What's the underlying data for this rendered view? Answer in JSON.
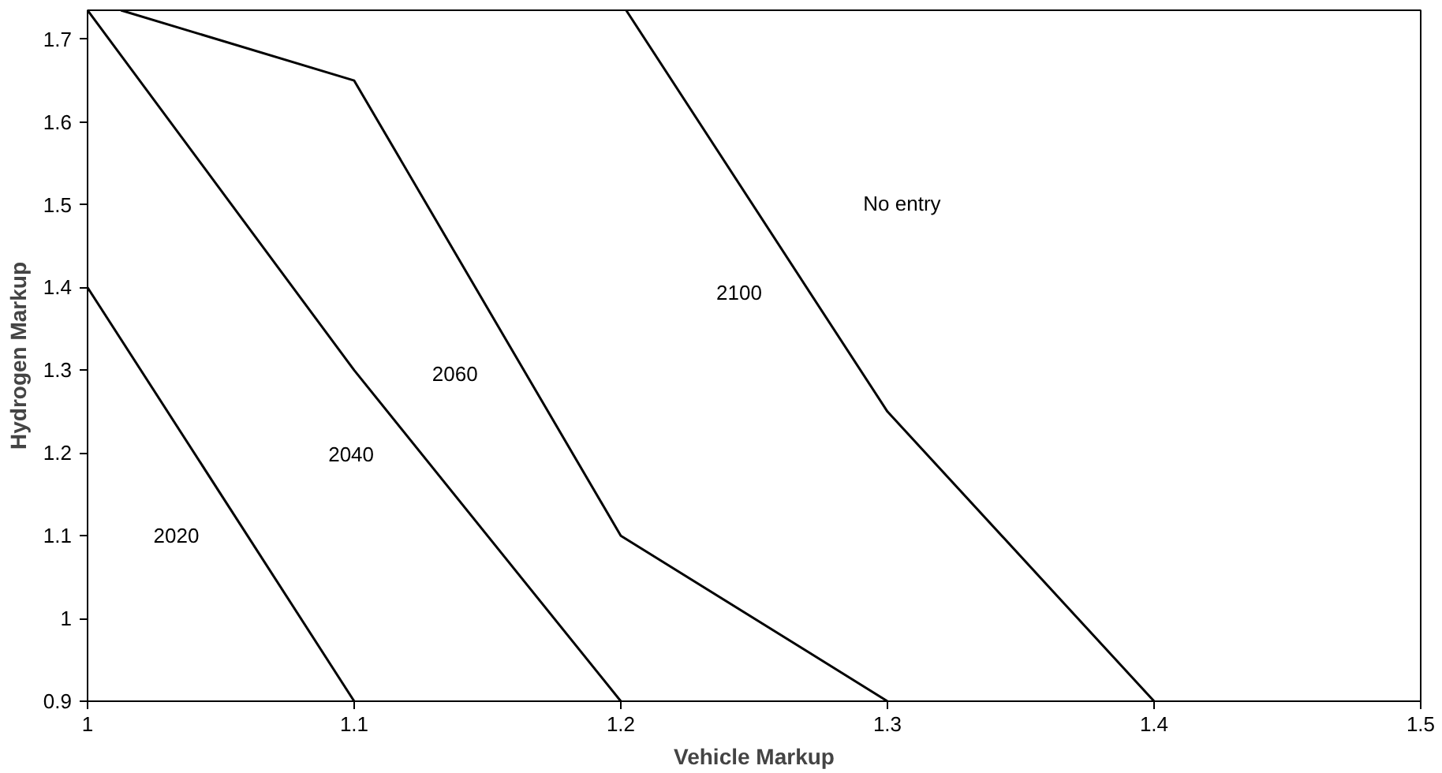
{
  "chart_data": {
    "type": "line",
    "xlabel": "Vehicle Markup",
    "ylabel": "Hydrogen Markup",
    "xlim": [
      1,
      1.5
    ],
    "ylim": [
      0.9,
      1.735
    ],
    "xticks": [
      1,
      1.1,
      1.2,
      1.3,
      1.4,
      1.5
    ],
    "yticks": [
      0.9,
      1,
      1.1,
      1.2,
      1.3,
      1.4,
      1.5,
      1.6,
      1.7
    ],
    "grid": false,
    "marker": "none",
    "line_style": "solid",
    "series": [
      {
        "name": "2020",
        "color": "#000000",
        "x": [
          1.0,
          1.1
        ],
        "values": [
          1.4,
          0.9
        ]
      },
      {
        "name": "2040",
        "color": "#000000",
        "x": [
          1.0,
          1.1,
          1.2
        ],
        "values": [
          1.735,
          1.3,
          0.9
        ]
      },
      {
        "name": "2060",
        "color": "#000000",
        "x": [
          1.0125,
          1.1,
          1.2,
          1.3
        ],
        "values": [
          1.735,
          1.65,
          1.1,
          0.9
        ]
      },
      {
        "name": "2100",
        "color": "#000000",
        "x": [
          1.202,
          1.3,
          1.4
        ],
        "values": [
          1.735,
          1.25,
          0.9
        ]
      }
    ],
    "annotations": [
      "No entry"
    ]
  }
}
